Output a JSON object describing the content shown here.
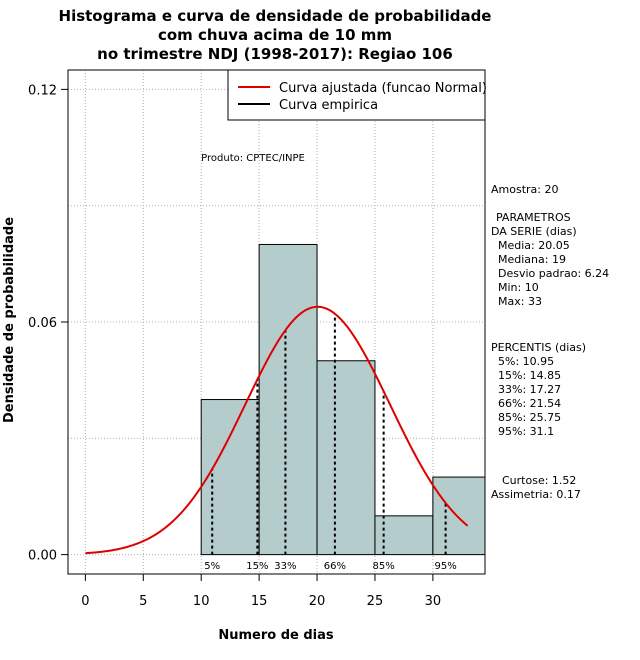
{
  "chart_data": {
    "type": "bar",
    "title_lines": [
      "Histograma e curva de densidade de probabilidade",
      "com chuva acima de 10 mm",
      "no trimestre NDJ (1998-2017): Regiao 106"
    ],
    "xlabel": "Numero de dias",
    "ylabel": "Densidade de probabilidade",
    "xlim": [
      -1.5,
      34.5
    ],
    "ylim": [
      -0.005,
      0.125
    ],
    "xticks": [
      0,
      5,
      10,
      15,
      20,
      25,
      30
    ],
    "yticks": [
      0.0,
      0.06,
      0.12
    ],
    "ytick_labels": [
      "0.00",
      "0.06",
      "0.12"
    ],
    "grid": true,
    "bins": [
      {
        "start": 10,
        "end": 15,
        "density": 0.04
      },
      {
        "start": 15,
        "end": 20,
        "density": 0.08
      },
      {
        "start": 20,
        "end": 25,
        "density": 0.05
      },
      {
        "start": 25,
        "end": 30,
        "density": 0.01
      },
      {
        "start": 30,
        "end": 35,
        "density": 0.02
      }
    ],
    "normal_curve": {
      "mean": 20.05,
      "sd": 6.24,
      "x_from": 0,
      "x_to": 33
    },
    "percentile_marks": [
      {
        "label": "5%",
        "value": 10.95
      },
      {
        "label": "15%",
        "value": 14.85
      },
      {
        "label": "33%",
        "value": 17.27
      },
      {
        "label": "66%",
        "value": 21.54
      },
      {
        "label": "85%",
        "value": 25.75
      },
      {
        "label": "95%",
        "value": 31.1
      }
    ],
    "legend": {
      "placement": "top-right",
      "entries": [
        {
          "label": "Curva ajustada (funcao Normal)",
          "color": "#e00000"
        },
        {
          "label": "Curva empirica",
          "color": "#000000"
        }
      ]
    },
    "annotation": "Produto: CPTEC/INPE",
    "colors": {
      "bar_fill": "#b4cccc",
      "curve": "#e00000",
      "grid": "#b0b0b0"
    }
  },
  "side_panel": {
    "sample": "Amostra: 20",
    "params_title": "PARAMETROS",
    "params_subtitle": "DA SERIE (dias)",
    "params": [
      "Media: 20.05",
      "Mediana: 19",
      "Desvio padrao: 6.24",
      "Min: 10",
      "Max: 33"
    ],
    "percentis_title": "PERCENTIS (dias)",
    "percentis": [
      "5%: 10.95",
      "15%: 14.85",
      "33%: 17.27",
      "66%: 21.54",
      "85%: 25.75",
      "95%: 31.1"
    ],
    "curtose": "Curtose: 1.52",
    "assimetria": "Assimetria: 0.17"
  }
}
